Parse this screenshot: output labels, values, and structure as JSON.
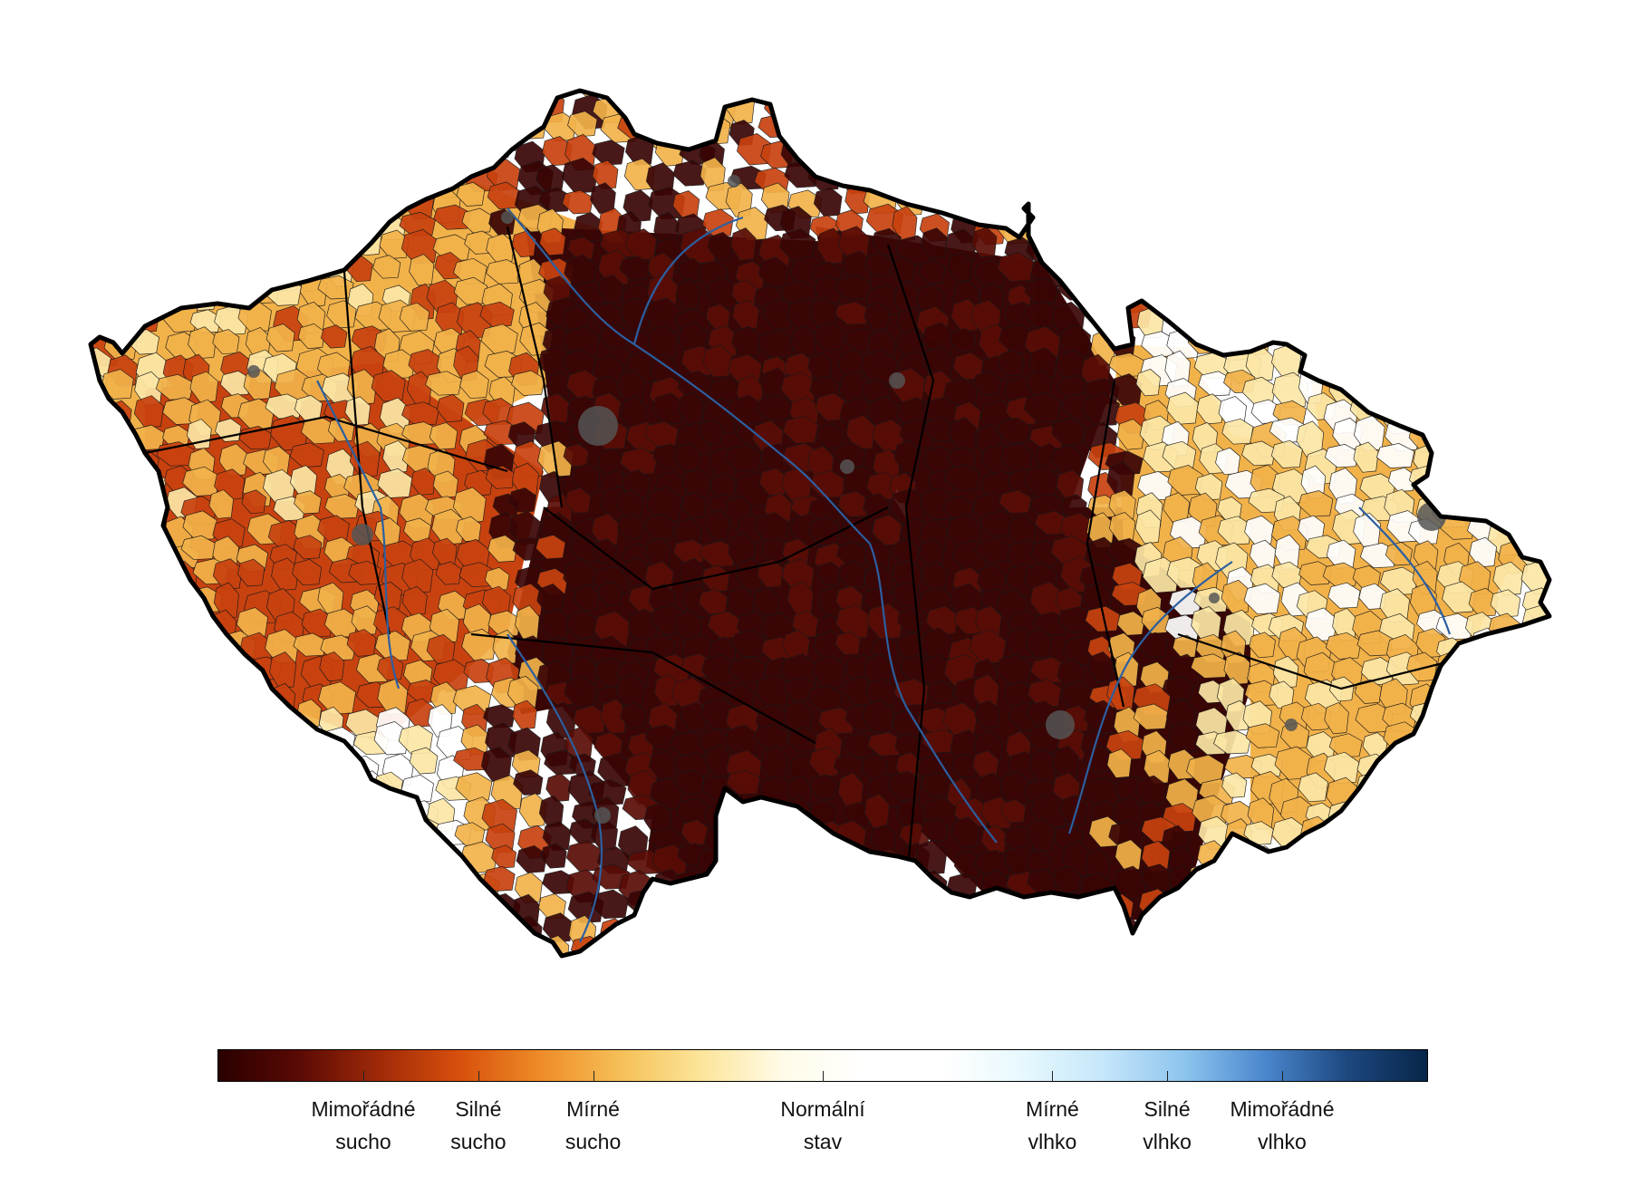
{
  "map": {
    "region": "Czech Republic",
    "description_type": "drought index choropleth by river sub-basins",
    "regions": [
      {
        "id": "northwest",
        "level": "moderate_drought"
      },
      {
        "id": "west-central",
        "level": "strong_drought"
      },
      {
        "id": "central-bohemia",
        "level": "extreme_drought"
      },
      {
        "id": "east-bohemia",
        "level": "extreme_drought"
      },
      {
        "id": "vysocina",
        "level": "extreme_drought"
      },
      {
        "id": "south-moravia",
        "level": "extreme_drought"
      },
      {
        "id": "south-bohemia-south",
        "level": "normal"
      },
      {
        "id": "north-moravia",
        "level": "moderate_drought"
      },
      {
        "id": "jeseniky",
        "level": "normal"
      },
      {
        "id": "zlin",
        "level": "moderate_drought"
      }
    ],
    "colors": {
      "extreme_drought": "#3a0505",
      "strong_drought": "#c8420f",
      "moderate_drought": "#f2b24a",
      "light_drought": "#fce7a6",
      "normal": "#ffffff",
      "moderate_wet": "#dff5fb",
      "strong_wet": "#8cc4ee",
      "extreme_wet": "#0b2d55",
      "border": "#000000",
      "river": "#2c5fa0",
      "city": "#555555"
    }
  },
  "legend": {
    "stops": [
      "#2a0000",
      "#5a0a05",
      "#a02a08",
      "#d8500c",
      "#ee8c28",
      "#f6c058",
      "#fce59a",
      "#fffbe8",
      "#ffffff",
      "#ffffff",
      "#e6f8fd",
      "#c5e6fa",
      "#8cc4ee",
      "#4a86cc",
      "#1d4880",
      "#08264a"
    ],
    "labels": [
      {
        "id": "extreme-drought",
        "line1": "Mimořádné",
        "line2": "sucho",
        "pos": 0.1205
      },
      {
        "id": "strong-drought",
        "line1": "Silné",
        "line2": "sucho",
        "pos": 0.2155
      },
      {
        "id": "moderate-drought",
        "line1": "Mírné",
        "line2": "sucho",
        "pos": 0.3103
      },
      {
        "id": "normal-state",
        "line1": "Normální",
        "line2": "stav",
        "pos": 0.5
      },
      {
        "id": "moderate-wet",
        "line1": "Mírné",
        "line2": "vlhko",
        "pos": 0.6897
      },
      {
        "id": "strong-wet",
        "line1": "Silné",
        "line2": "vlhko",
        "pos": 0.7845
      },
      {
        "id": "extreme-wet",
        "line1": "Mimořádné",
        "line2": "vlhko",
        "pos": 0.8795
      }
    ]
  }
}
